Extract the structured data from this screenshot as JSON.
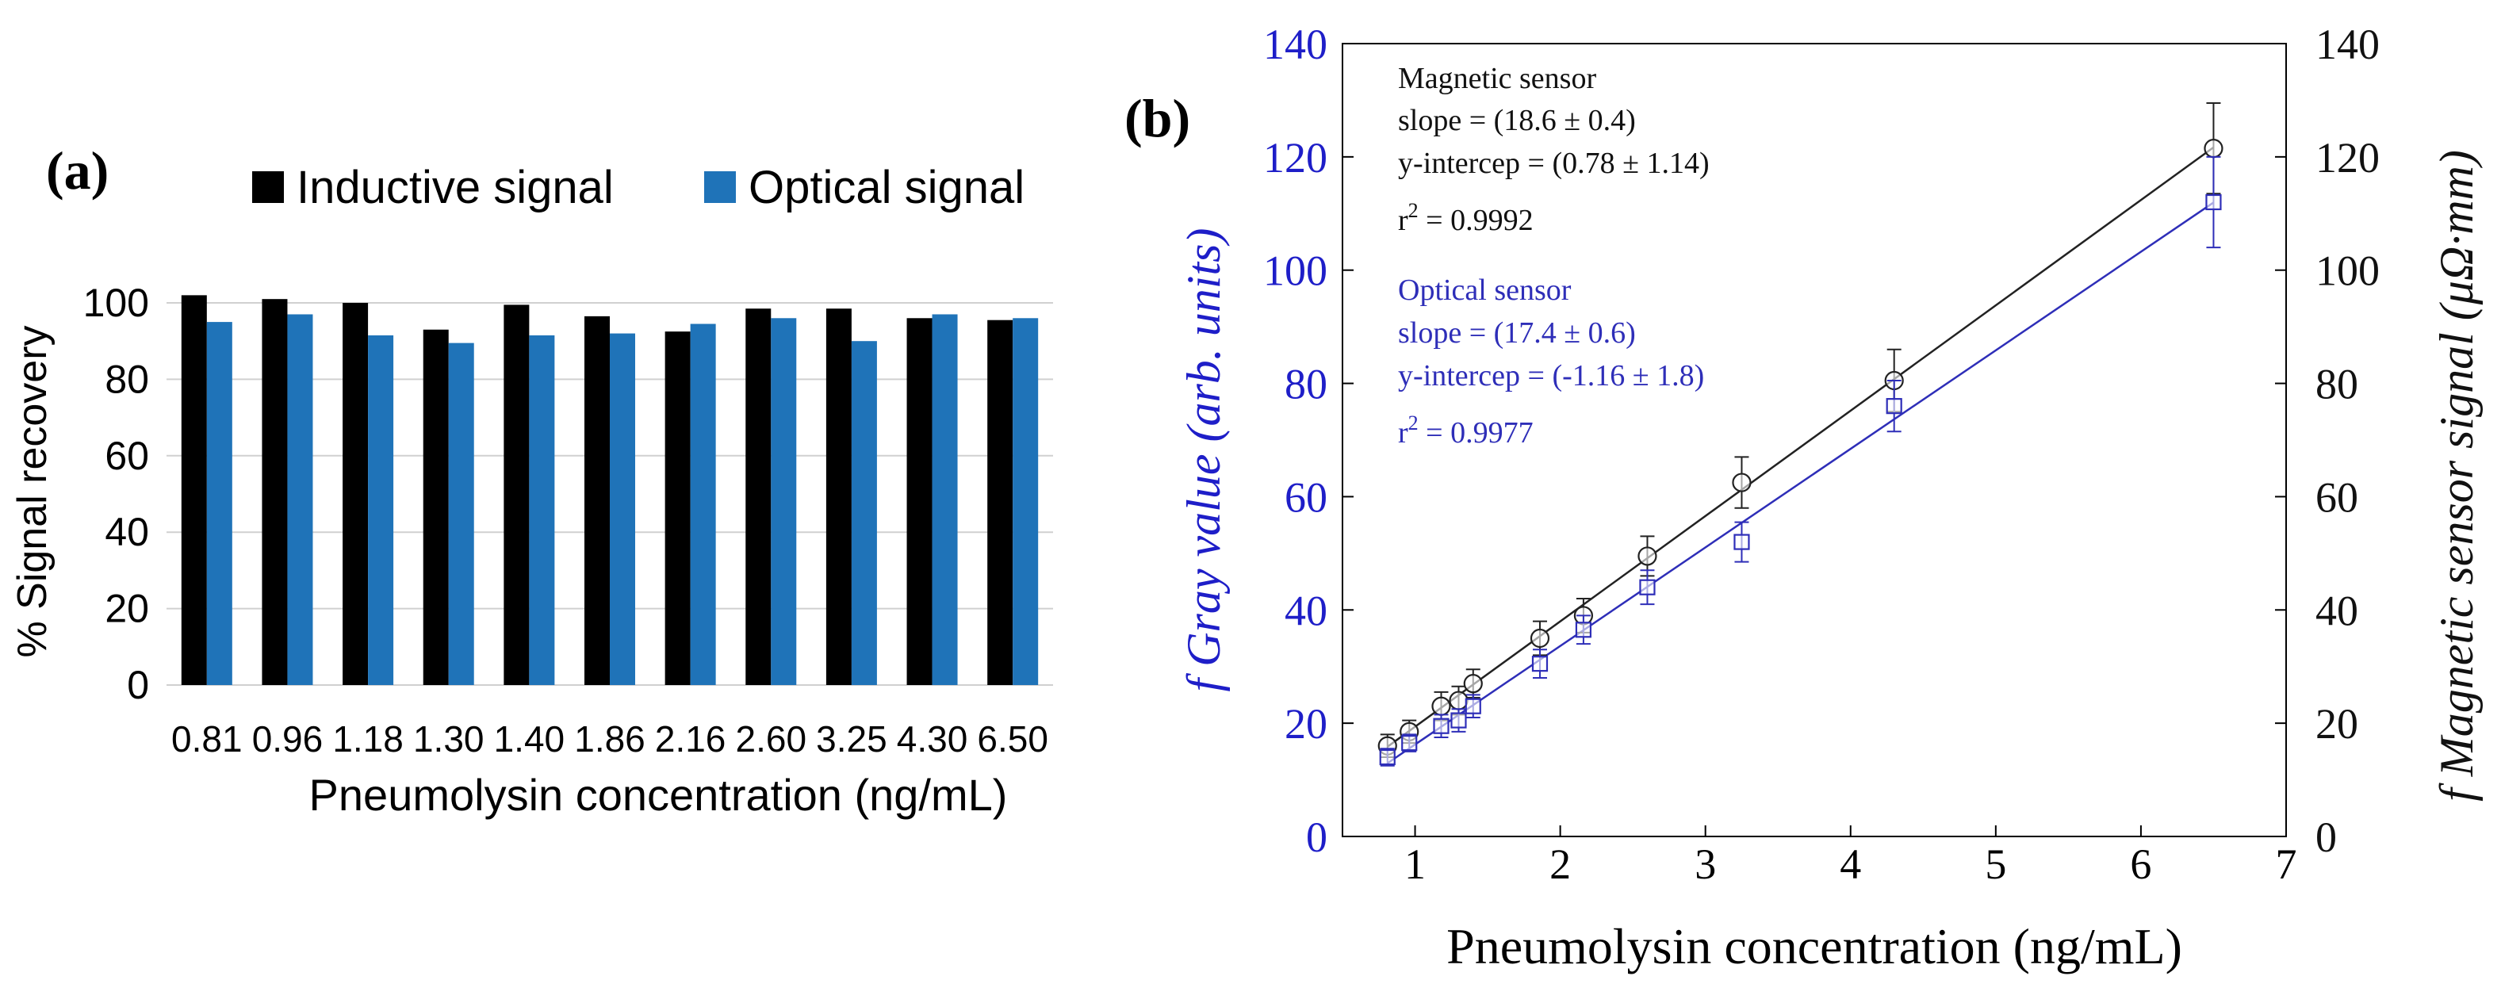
{
  "panels": {
    "a": {
      "label": "(a)"
    },
    "b": {
      "label": "(b)"
    }
  },
  "colors": {
    "inductive": "#000000",
    "optical": "#1f73b8",
    "magnetic_line": "#222222",
    "optical_line": "#2e2eb8",
    "left_axis_b": "#1e1ec8",
    "grid": "#d0d0d0"
  },
  "chart_data": [
    {
      "type": "bar",
      "panel": "(a)",
      "title": "",
      "categories": [
        "0.81",
        "0.96",
        "1.18",
        "1.30",
        "1.40",
        "1.86",
        "2.16",
        "2.60",
        "3.25",
        "4.30",
        "6.50"
      ],
      "series": [
        {
          "name": "Inductive signal",
          "values": [
            102,
            101,
            100,
            93,
            99.5,
            96.5,
            92.5,
            98.5,
            98.5,
            96,
            95.5
          ]
        },
        {
          "name": "Optical signal",
          "values": [
            95,
            97,
            91.5,
            89.5,
            91.5,
            92,
            94.5,
            96,
            90,
            97,
            96
          ]
        }
      ],
      "xlabel": "Pneumolysin concentration (ng/mL)",
      "ylabel": "% Signal recovery",
      "ylim": [
        0,
        100
      ],
      "yticks": [
        0,
        20,
        40,
        60,
        80,
        100
      ],
      "grid": true,
      "legend_position": "top"
    },
    {
      "type": "scatter",
      "panel": "(b)",
      "xlabel": "Pneumolysin concentration (ng/mL)",
      "ylabel_left": "f Gray value (arb. units)",
      "ylabel_right": "f Magnetic sensor signal (μΩ·mm)",
      "xlim": [
        0.5,
        7
      ],
      "ylim": [
        0,
        140
      ],
      "xticks": [
        1,
        2,
        3,
        4,
        5,
        6,
        7
      ],
      "yticks": [
        0,
        20,
        40,
        60,
        80,
        100,
        120,
        140
      ],
      "series": [
        {
          "name": "Magnetic sensor",
          "marker": "circle",
          "x": [
            0.81,
            0.96,
            1.18,
            1.3,
            1.4,
            1.86,
            2.16,
            2.6,
            3.25,
            4.3,
            6.5
          ],
          "y": [
            16,
            18.5,
            23,
            24,
            27,
            35,
            39,
            49.5,
            62.5,
            80.5,
            121.5
          ],
          "err": [
            2,
            2,
            2.5,
            2.5,
            2.5,
            3,
            3,
            3.5,
            4.5,
            5.5,
            8
          ],
          "fit": {
            "slope": 18.6,
            "intercept": 0.78
          }
        },
        {
          "name": "Optical sensor",
          "marker": "square",
          "x": [
            0.81,
            0.96,
            1.18,
            1.3,
            1.4,
            1.86,
            2.16,
            2.6,
            3.25,
            4.3,
            6.5
          ],
          "y": [
            14,
            16.5,
            19.5,
            20.5,
            23,
            30.5,
            36.5,
            44,
            52,
            76,
            112
          ],
          "err": [
            1.5,
            1.5,
            2,
            2,
            2,
            2.5,
            2.5,
            3,
            3.5,
            4.5,
            8
          ],
          "fit": {
            "slope": 17.4,
            "intercept": -1.16
          }
        }
      ],
      "annotations": {
        "magnetic": {
          "title": "Magnetic sensor",
          "slope": "slope = (18.6 ± 0.4)",
          "intercept": "y-intercep = (0.78 ± 1.14)",
          "r2_prefix": "r",
          "r2_sup": "2",
          "r2_value": " = 0.9992"
        },
        "optical": {
          "title": "Optical sensor",
          "slope": "slope = (17.4 ± 0.6)",
          "intercept": "y-intercep = (-1.16 ± 1.8)",
          "r2_prefix": "r",
          "r2_sup": "2",
          "r2_value": " = 0.9977"
        }
      }
    }
  ]
}
